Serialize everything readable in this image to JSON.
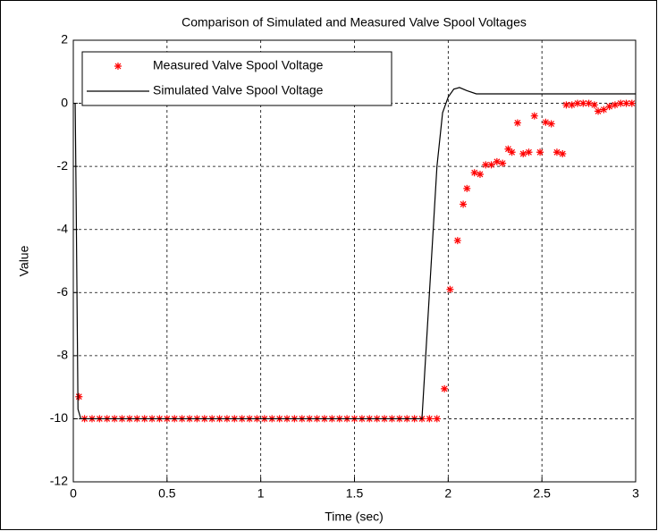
{
  "chart_data": {
    "type": "scatter-line",
    "title": "Comparison of Simulated and Measured Valve Spool Voltages",
    "x_label": "Time (sec)",
    "y_label": "Value",
    "xlim": [
      0,
      3
    ],
    "ylim": [
      -12,
      2
    ],
    "xticks": [
      0,
      0.5,
      1,
      1.5,
      2,
      2.5,
      3
    ],
    "yticks": [
      -12,
      -10,
      -8,
      -6,
      -4,
      -2,
      0,
      2
    ],
    "grid": true,
    "legend": "upper left",
    "series": [
      {
        "name": "Measured Valve Spool Voltage",
        "type": "scatter",
        "color": "#ff0000",
        "x": [
          0.03,
          0.06,
          0.1,
          0.14,
          0.18,
          0.22,
          0.26,
          0.3,
          0.34,
          0.38,
          0.42,
          0.46,
          0.5,
          0.54,
          0.58,
          0.62,
          0.66,
          0.7,
          0.74,
          0.78,
          0.82,
          0.86,
          0.9,
          0.94,
          0.98,
          1.02,
          1.06,
          1.1,
          1.14,
          1.18,
          1.22,
          1.26,
          1.3,
          1.34,
          1.38,
          1.42,
          1.46,
          1.5,
          1.54,
          1.58,
          1.62,
          1.66,
          1.7,
          1.74,
          1.78,
          1.82,
          1.86,
          1.9,
          1.94,
          1.98,
          2.01,
          2.05,
          2.08,
          2.1,
          2.14,
          2.17,
          2.2,
          2.23,
          2.26,
          2.29,
          2.32,
          2.34,
          2.37,
          2.4,
          2.43,
          2.46,
          2.49,
          2.52,
          2.55,
          2.58,
          2.61,
          2.63,
          2.66,
          2.69,
          2.72,
          2.75,
          2.78,
          2.8,
          2.83,
          2.86,
          2.89,
          2.92,
          2.95,
          2.98
        ],
        "values": [
          -9.3,
          -10,
          -10,
          -10,
          -10,
          -10,
          -10,
          -10,
          -10,
          -10,
          -10,
          -10,
          -10,
          -10,
          -10,
          -10,
          -10,
          -10,
          -10,
          -10,
          -10,
          -10,
          -10,
          -10,
          -10,
          -10,
          -10,
          -10,
          -10,
          -10,
          -10,
          -10,
          -10,
          -10,
          -10,
          -10,
          -10,
          -10,
          -10,
          -10,
          -10,
          -10,
          -10,
          -10,
          -10,
          -10,
          -10,
          -10,
          -10,
          -9.05,
          -5.9,
          -4.35,
          -3.2,
          -2.7,
          -2.2,
          -2.25,
          -1.95,
          -1.95,
          -1.85,
          -1.9,
          -1.45,
          -1.55,
          -0.62,
          -1.6,
          -1.55,
          -0.4,
          -1.55,
          -0.6,
          -0.65,
          -1.55,
          -1.6,
          -0.05,
          -0.05,
          0,
          0,
          0,
          -0.05,
          -0.25,
          -0.2,
          -0.1,
          -0.05,
          0,
          0,
          0
        ]
      },
      {
        "name": "Simulated Valve Spool Voltage",
        "type": "line",
        "color": "#000000",
        "x": [
          0,
          0.01,
          0.015,
          0.025,
          0.04,
          1.86,
          1.9,
          1.94,
          1.97,
          2.0,
          2.03,
          2.06,
          2.1,
          2.15,
          3
        ],
        "values": [
          0,
          0,
          -3,
          -9.7,
          -10,
          -10,
          -6,
          -2,
          -0.3,
          0.2,
          0.45,
          0.5,
          0.4,
          0.3,
          0.3
        ]
      }
    ]
  }
}
